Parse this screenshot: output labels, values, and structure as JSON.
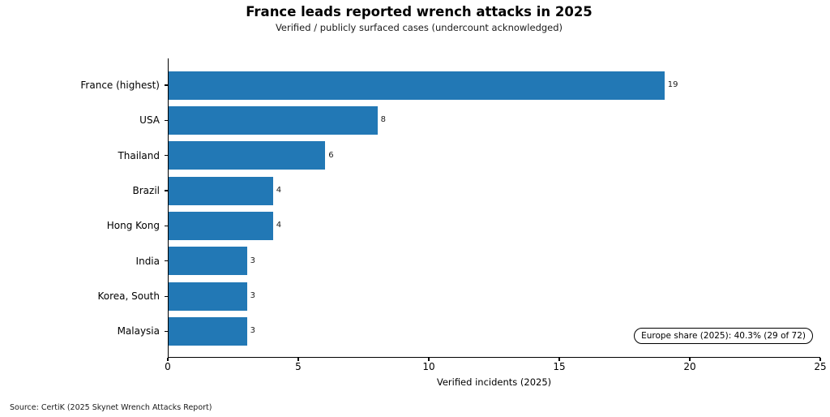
{
  "header": {
    "title": "France leads reported wrench attacks in 2025",
    "subtitle": "Verified / publicly surfaced cases (undercount acknowledged)"
  },
  "chart_data": {
    "type": "bar",
    "orientation": "horizontal",
    "title": "France leads reported wrench attacks in 2025",
    "subtitle": "Verified / publicly surfaced cases (undercount acknowledged)",
    "categories": [
      "France (highest)",
      "USA",
      "Thailand",
      "Brazil",
      "Hong Kong",
      "India",
      "Korea, South",
      "Malaysia"
    ],
    "values": [
      19,
      8,
      6,
      4,
      4,
      3,
      3,
      3
    ],
    "value_labels": [
      "19",
      "8",
      "6",
      "4",
      "4",
      "3",
      "3",
      "3"
    ],
    "xlabel": "Verified incidents (2025)",
    "ylabel": "",
    "xlim": [
      0,
      25
    ],
    "xticks": [
      0,
      5,
      10,
      15,
      20,
      25
    ],
    "grid": false,
    "legend": null,
    "bar_color": "#2278b5",
    "annotation": "Europe share (2025): 40.3% (29 of 72)"
  },
  "footer": {
    "source": "Source: CertiK (2025 Skynet Wrench Attacks Report)"
  }
}
